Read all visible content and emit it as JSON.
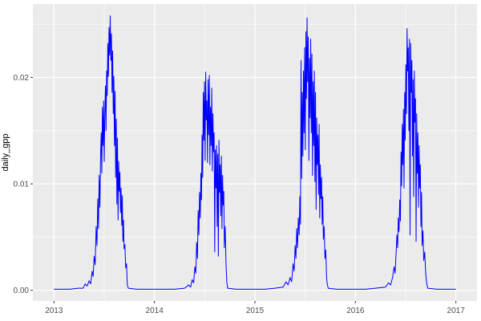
{
  "chart_data": {
    "type": "line",
    "ylabel": "daily_gpp",
    "xlabel": "",
    "x_ticks": {
      "labels": [
        "2013",
        "2014",
        "2015",
        "2016",
        "2017"
      ],
      "values": [
        2013,
        2014,
        2015,
        2016,
        2017
      ]
    },
    "y_ticks": {
      "labels": [
        "0.00",
        "0.01",
        "0.02"
      ],
      "values": [
        0,
        0.01,
        0.02
      ]
    },
    "x_minor": [
      2013.5,
      2014.5,
      2015.5,
      2016.5
    ],
    "y_minor": [
      0.005,
      0.015,
      0.025
    ],
    "xlim": [
      2012.79,
      2017.21
    ],
    "ylim": [
      -0.001,
      0.0269
    ],
    "grid": "major and minor white gridlines on gray panel",
    "legend": "none",
    "style": {
      "panel_bg": "#EBEBEB",
      "grid_color": "#FFFFFF",
      "line_color": "#0000FF",
      "tick_label_color": "#4D4D4D",
      "tick_mark_color": "#333333",
      "axis_title_color": "#000000"
    },
    "series": [
      {
        "name": "daily_gpp",
        "color": "#0000FF",
        "points": [
          [
            2013.0,
            0.0001
          ],
          [
            2013.08,
            0.0001
          ],
          [
            2013.16,
            0.0001
          ],
          [
            2013.24,
            0.0002
          ],
          [
            2013.29,
            0.0002
          ],
          [
            2013.31,
            0.0006
          ],
          [
            2013.33,
            0.0004
          ],
          [
            2013.35,
            0.0009
          ],
          [
            2013.365,
            0.0006
          ],
          [
            2013.38,
            0.0018
          ],
          [
            2013.39,
            0.0013
          ],
          [
            2013.4,
            0.0032
          ],
          [
            2013.41,
            0.0024
          ],
          [
            2013.42,
            0.006
          ],
          [
            2013.428,
            0.0042
          ],
          [
            2013.436,
            0.0086
          ],
          [
            2013.443,
            0.0058
          ],
          [
            2013.45,
            0.0108
          ],
          [
            2013.457,
            0.0078
          ],
          [
            2013.464,
            0.0128
          ],
          [
            2013.47,
            0.0148
          ],
          [
            2013.476,
            0.011
          ],
          [
            2013.482,
            0.0172
          ],
          [
            2013.488,
            0.0136
          ],
          [
            2013.494,
            0.0178
          ],
          [
            2013.5,
            0.0121
          ],
          [
            2013.506,
            0.0166
          ],
          [
            2013.512,
            0.0192
          ],
          [
            2013.518,
            0.015
          ],
          [
            2013.524,
            0.0206
          ],
          [
            2013.53,
            0.0183
          ],
          [
            2013.536,
            0.0232
          ],
          [
            2013.542,
            0.0201
          ],
          [
            2013.548,
            0.0247
          ],
          [
            2013.554,
            0.0221
          ],
          [
            2013.56,
            0.0258
          ],
          [
            2013.566,
            0.0216
          ],
          [
            2013.572,
            0.0241
          ],
          [
            2013.578,
            0.0186
          ],
          [
            2013.584,
            0.0225
          ],
          [
            2013.59,
            0.0166
          ],
          [
            2013.596,
            0.0201
          ],
          [
            2013.602,
            0.0136
          ],
          [
            2013.608,
            0.0187
          ],
          [
            2013.614,
            0.0106
          ],
          [
            2013.62,
            0.0161
          ],
          [
            2013.626,
            0.0081
          ],
          [
            2013.632,
            0.0143
          ],
          [
            2013.638,
            0.0066
          ],
          [
            2013.644,
            0.0121
          ],
          [
            2013.65,
            0.0093
          ],
          [
            2013.656,
            0.0111
          ],
          [
            2013.662,
            0.0073
          ],
          [
            2013.668,
            0.0096
          ],
          [
            2013.674,
            0.0061
          ],
          [
            2013.68,
            0.0089
          ],
          [
            2013.686,
            0.0046
          ],
          [
            2013.692,
            0.0066
          ],
          [
            2013.698,
            0.0039
          ],
          [
            2013.706,
            0.0043
          ],
          [
            2013.714,
            0.0021
          ],
          [
            2013.722,
            0.0025
          ],
          [
            2013.73,
            0.0005
          ],
          [
            2013.74,
            0.0002
          ],
          [
            2013.82,
            0.0001
          ],
          [
            2013.91,
            0.0001
          ],
          [
            2014.0,
            0.0001
          ],
          [
            2014.1,
            0.0001
          ],
          [
            2014.2,
            0.0001
          ],
          [
            2014.3,
            0.0002
          ],
          [
            2014.34,
            0.0005
          ],
          [
            2014.36,
            0.0003
          ],
          [
            2014.375,
            0.001
          ],
          [
            2014.39,
            0.0007
          ],
          [
            2014.402,
            0.0022
          ],
          [
            2014.412,
            0.0016
          ],
          [
            2014.42,
            0.0045
          ],
          [
            2014.428,
            0.003
          ],
          [
            2014.435,
            0.0075
          ],
          [
            2014.442,
            0.0052
          ],
          [
            2014.449,
            0.0092
          ],
          [
            2014.456,
            0.0068
          ],
          [
            2014.462,
            0.011
          ],
          [
            2014.468,
            0.0085
          ],
          [
            2014.474,
            0.0146
          ],
          [
            2014.48,
            0.0106
          ],
          [
            2014.486,
            0.0186
          ],
          [
            2014.492,
            0.0141
          ],
          [
            2014.498,
            0.0196
          ],
          [
            2014.504,
            0.0122
          ],
          [
            2014.51,
            0.0205
          ],
          [
            2014.516,
            0.016
          ],
          [
            2014.522,
            0.0178
          ],
          [
            2014.528,
            0.012
          ],
          [
            2014.534,
            0.0198
          ],
          [
            2014.54,
            0.0146
          ],
          [
            2014.546,
            0.0202
          ],
          [
            2014.552,
            0.0118
          ],
          [
            2014.558,
            0.0172
          ],
          [
            2014.564,
            0.0136
          ],
          [
            2014.57,
            0.019
          ],
          [
            2014.576,
            0.0112
          ],
          [
            2014.582,
            0.0166
          ],
          [
            2014.588,
            0.013
          ],
          [
            2014.594,
            0.0148
          ],
          [
            2014.6,
            0.0036
          ],
          [
            2014.606,
            0.0132
          ],
          [
            2014.612,
            0.0096
          ],
          [
            2014.618,
            0.0136
          ],
          [
            2014.624,
            0.006
          ],
          [
            2014.63,
            0.0128
          ],
          [
            2014.636,
            0.0032
          ],
          [
            2014.642,
            0.0141
          ],
          [
            2014.648,
            0.0092
          ],
          [
            2014.654,
            0.0118
          ],
          [
            2014.66,
            0.007
          ],
          [
            2014.666,
            0.0126
          ],
          [
            2014.672,
            0.0058
          ],
          [
            2014.678,
            0.0108
          ],
          [
            2014.684,
            0.008
          ],
          [
            2014.69,
            0.0093
          ],
          [
            2014.696,
            0.004
          ],
          [
            2014.704,
            0.006
          ],
          [
            2014.712,
            0.0026
          ],
          [
            2014.72,
            0.0008
          ],
          [
            2014.728,
            0.0002
          ],
          [
            2014.81,
            0.0001
          ],
          [
            2014.9,
            0.0001
          ],
          [
            2015.0,
            0.0001
          ],
          [
            2015.1,
            0.0001
          ],
          [
            2015.2,
            0.0002
          ],
          [
            2015.28,
            0.0003
          ],
          [
            2015.31,
            0.0008
          ],
          [
            2015.33,
            0.0005
          ],
          [
            2015.35,
            0.0012
          ],
          [
            2015.365,
            0.0008
          ],
          [
            2015.38,
            0.0025
          ],
          [
            2015.39,
            0.0018
          ],
          [
            2015.4,
            0.0042
          ],
          [
            2015.408,
            0.003
          ],
          [
            2015.416,
            0.0058
          ],
          [
            2015.424,
            0.004
          ],
          [
            2015.432,
            0.0068
          ],
          [
            2015.44,
            0.0052
          ],
          [
            2015.447,
            0.0088
          ],
          [
            2015.453,
            0.0062
          ],
          [
            2015.459,
            0.0216
          ],
          [
            2015.465,
            0.0105
          ],
          [
            2015.471,
            0.0186
          ],
          [
            2015.477,
            0.0126
          ],
          [
            2015.483,
            0.0206
          ],
          [
            2015.489,
            0.0148
          ],
          [
            2015.495,
            0.0228
          ],
          [
            2015.501,
            0.0132
          ],
          [
            2015.507,
            0.0243
          ],
          [
            2015.513,
            0.018
          ],
          [
            2015.519,
            0.0256
          ],
          [
            2015.525,
            0.0196
          ],
          [
            2015.531,
            0.0238
          ],
          [
            2015.537,
            0.0122
          ],
          [
            2015.543,
            0.0218
          ],
          [
            2015.549,
            0.0162
          ],
          [
            2015.555,
            0.0236
          ],
          [
            2015.561,
            0.0148
          ],
          [
            2015.567,
            0.0222
          ],
          [
            2015.573,
            0.0108
          ],
          [
            2015.579,
            0.0196
          ],
          [
            2015.585,
            0.0136
          ],
          [
            2015.591,
            0.0206
          ],
          [
            2015.597,
            0.0102
          ],
          [
            2015.603,
            0.0186
          ],
          [
            2015.609,
            0.0076
          ],
          [
            2015.615,
            0.0162
          ],
          [
            2015.621,
            0.0118
          ],
          [
            2015.627,
            0.0146
          ],
          [
            2015.633,
            0.009
          ],
          [
            2015.639,
            0.0156
          ],
          [
            2015.645,
            0.0068
          ],
          [
            2015.651,
            0.0118
          ],
          [
            2015.657,
            0.0086
          ],
          [
            2015.663,
            0.0106
          ],
          [
            2015.669,
            0.0062
          ],
          [
            2015.675,
            0.0088
          ],
          [
            2015.681,
            0.0048
          ],
          [
            2015.689,
            0.006
          ],
          [
            2015.697,
            0.003
          ],
          [
            2015.705,
            0.0038
          ],
          [
            2015.713,
            0.0012
          ],
          [
            2015.721,
            0.0005
          ],
          [
            2015.73,
            0.0002
          ],
          [
            2015.81,
            0.0001
          ],
          [
            2015.9,
            0.0001
          ],
          [
            2016.0,
            0.0001
          ],
          [
            2016.1,
            0.0001
          ],
          [
            2016.2,
            0.0002
          ],
          [
            2016.3,
            0.0003
          ],
          [
            2016.33,
            0.0007
          ],
          [
            2016.35,
            0.0005
          ],
          [
            2016.37,
            0.0012
          ],
          [
            2016.385,
            0.0022
          ],
          [
            2016.395,
            0.0016
          ],
          [
            2016.405,
            0.0035
          ],
          [
            2016.413,
            0.0052
          ],
          [
            2016.42,
            0.004
          ],
          [
            2016.427,
            0.0068
          ],
          [
            2016.434,
            0.0055
          ],
          [
            2016.441,
            0.0085
          ],
          [
            2016.448,
            0.0065
          ],
          [
            2016.454,
            0.013
          ],
          [
            2016.46,
            0.0098
          ],
          [
            2016.466,
            0.0156
          ],
          [
            2016.472,
            0.0118
          ],
          [
            2016.478,
            0.017
          ],
          [
            2016.484,
            0.0096
          ],
          [
            2016.49,
            0.0186
          ],
          [
            2016.496,
            0.0141
          ],
          [
            2016.502,
            0.0212
          ],
          [
            2016.508,
            0.0166
          ],
          [
            2016.514,
            0.0246
          ],
          [
            2016.52,
            0.0206
          ],
          [
            2016.526,
            0.0228
          ],
          [
            2016.532,
            0.015
          ],
          [
            2016.538,
            0.0236
          ],
          [
            2016.544,
            0.0052
          ],
          [
            2016.55,
            0.0232
          ],
          [
            2016.556,
            0.0186
          ],
          [
            2016.562,
            0.0216
          ],
          [
            2016.568,
            0.0126
          ],
          [
            2016.574,
            0.0198
          ],
          [
            2016.58,
            0.0088
          ],
          [
            2016.586,
            0.0206
          ],
          [
            2016.592,
            0.0158
          ],
          [
            2016.598,
            0.018
          ],
          [
            2016.604,
            0.0046
          ],
          [
            2016.61,
            0.0166
          ],
          [
            2016.616,
            0.011
          ],
          [
            2016.622,
            0.0148
          ],
          [
            2016.628,
            0.0078
          ],
          [
            2016.634,
            0.0136
          ],
          [
            2016.64,
            0.0096
          ],
          [
            2016.646,
            0.0118
          ],
          [
            2016.652,
            0.006
          ],
          [
            2016.658,
            0.0092
          ],
          [
            2016.664,
            0.0042
          ],
          [
            2016.672,
            0.0056
          ],
          [
            2016.68,
            0.0028
          ],
          [
            2016.69,
            0.0036
          ],
          [
            2016.7,
            0.0015
          ],
          [
            2016.71,
            0.0006
          ],
          [
            2016.72,
            0.0002
          ],
          [
            2016.81,
            0.0001
          ],
          [
            2016.9,
            0.0001
          ],
          [
            2017.0,
            0.0001
          ]
        ]
      }
    ]
  }
}
